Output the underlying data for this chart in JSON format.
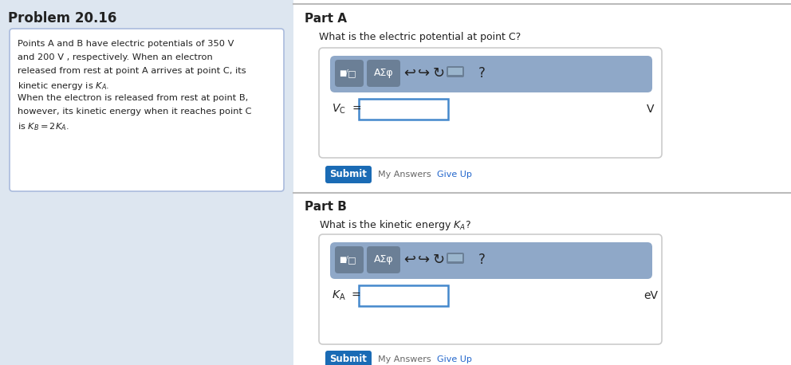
{
  "bg_color": "#dde6f0",
  "white": "#ffffff",
  "title": "Problem 20.16",
  "problem_text_lines": [
    "Points A and B have electric potentials of 350 V",
    "and 200 V , respectively. When an electron",
    "released from rest at point A arrives at point C, its",
    "kinetic energy is $K_A$.",
    "When the electron is released from rest at point B,",
    "however, its kinetic energy when it reaches point C",
    "is $K_B = 2K_A$."
  ],
  "part_a_title": "Part A",
  "part_a_question": "What is the electric potential at point C?",
  "part_a_label": "$V_C =\\ $",
  "part_a_unit": "V",
  "part_b_title": "Part B",
  "part_b_question": "What is the kinetic energy $K_A$?",
  "part_b_label": "$K_A =\\ $",
  "part_b_unit": "eV",
  "submit_color": "#1a6bb5",
  "submit_text": "Submit",
  "submit_text_color": "#ffffff",
  "toolbar_color": "#8fa8c8",
  "toolbar_btn_color": "#6b7f96",
  "input_border_color": "#4488cc",
  "separator_color": "#bbbbbb",
  "link_color": "#2266cc",
  "problem_box_border": "#aabbdd",
  "gray_text": "#666666",
  "dark_text": "#222222",
  "my_answers_color": "#666666"
}
